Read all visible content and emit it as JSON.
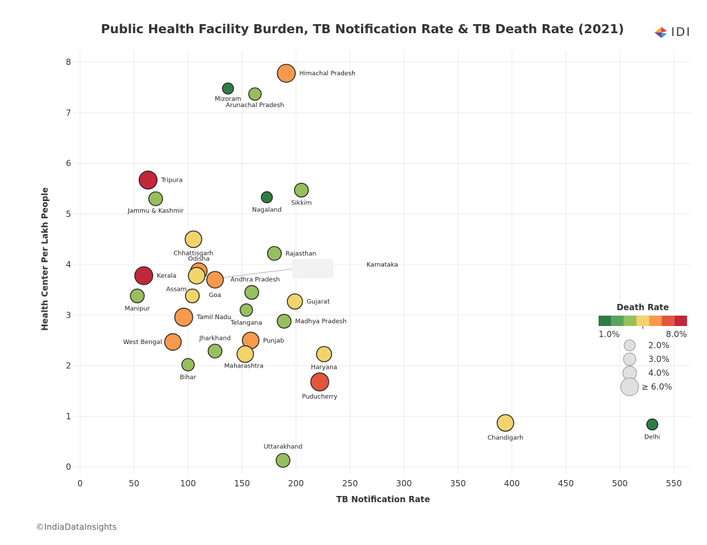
{
  "header": {
    "title": "Public Health Facility Burden, TB Notification Rate & TB Death Rate (2021)",
    "logo_text": "IDI"
  },
  "footer": {
    "credit": "©IndiaDataInsights"
  },
  "colors": {
    "scale": [
      "#2e7d45",
      "#5aa35a",
      "#97bf5e",
      "#f3d46b",
      "#f79a4d",
      "#e5553e",
      "#c2273a"
    ],
    "size_legend_fill": "#e0e0e0",
    "size_legend_stroke": "#9a9a9a"
  },
  "chart_data": {
    "type": "scatter",
    "title": "Public Health Facility Burden, TB Notification Rate & TB Death Rate (2021)",
    "xlabel": "TB Notification Rate",
    "ylabel": "Health Center Per Lakh People",
    "xlim": [
      0,
      565
    ],
    "ylim": [
      -0.1,
      8.3
    ],
    "x_ticks": [
      "0",
      "50",
      "100",
      "150",
      "200",
      "250",
      "300",
      "350",
      "400",
      "450",
      "500",
      "550"
    ],
    "y_ticks": [
      "0",
      "1",
      "2",
      "3",
      "4",
      "5",
      "6",
      "7",
      "8"
    ],
    "grid": true,
    "color_encoding": "Death Rate",
    "size_encoding": "Death Rate",
    "points": [
      {
        "label": "Himachal Pradesh",
        "x": 191,
        "y": 7.78,
        "color": "#f79a4d",
        "size": 13
      },
      {
        "label": "Mizoram",
        "x": 137,
        "y": 7.48,
        "color": "#2e7d45",
        "size": 8
      },
      {
        "label": "Arunachal Pradesh",
        "x": 162,
        "y": 7.37,
        "color": "#97bf5e",
        "size": 9
      },
      {
        "label": "Tripura",
        "x": 63,
        "y": 5.67,
        "color": "#c2273a",
        "size": 13
      },
      {
        "label": "Jammu & Kashmir",
        "x": 70,
        "y": 5.3,
        "color": "#97bf5e",
        "size": 10
      },
      {
        "label": "Sikkim",
        "x": 205,
        "y": 5.47,
        "color": "#97bf5e",
        "size": 10
      },
      {
        "label": "Nagaland",
        "x": 173,
        "y": 5.33,
        "color": "#2e7d45",
        "size": 8
      },
      {
        "label": "Chhattisgarh",
        "x": 105,
        "y": 4.5,
        "color": "#f3d46b",
        "size": 12
      },
      {
        "label": "Rajasthan",
        "x": 180,
        "y": 4.22,
        "color": "#97bf5e",
        "size": 10
      },
      {
        "label": "Odisha",
        "x": 110,
        "y": 3.87,
        "color": "#f79a4d",
        "size": 12
      },
      {
        "label": "Karnataka",
        "x": 108,
        "y": 3.78,
        "color": "#f3d46b",
        "size": 12
      },
      {
        "label": "Kerala",
        "x": 59,
        "y": 3.78,
        "color": "#c2273a",
        "size": 13
      },
      {
        "label": "Goa",
        "x": 125,
        "y": 3.7,
        "color": "#f79a4d",
        "size": 12
      },
      {
        "label": "Andhra Pradesh",
        "x": 159,
        "y": 3.45,
        "color": "#97bf5e",
        "size": 10
      },
      {
        "label": "Assam",
        "x": 104,
        "y": 3.38,
        "color": "#f3d46b",
        "size": 10
      },
      {
        "label": "Manipur",
        "x": 53,
        "y": 3.38,
        "color": "#97bf5e",
        "size": 10
      },
      {
        "label": "Gujarat",
        "x": 199,
        "y": 3.27,
        "color": "#f3d46b",
        "size": 11
      },
      {
        "label": "Telangana",
        "x": 154,
        "y": 3.1,
        "color": "#97bf5e",
        "size": 9
      },
      {
        "label": "Tamil Nadu",
        "x": 96,
        "y": 2.96,
        "color": "#f79a4d",
        "size": 13
      },
      {
        "label": "Madhya Pradesh",
        "x": 189,
        "y": 2.88,
        "color": "#97bf5e",
        "size": 10
      },
      {
        "label": "West Bengal",
        "x": 86,
        "y": 2.47,
        "color": "#f79a4d",
        "size": 12
      },
      {
        "label": "Punjab",
        "x": 158,
        "y": 2.5,
        "color": "#f79a4d",
        "size": 12
      },
      {
        "label": "Jharkhand",
        "x": 125,
        "y": 2.29,
        "color": "#97bf5e",
        "size": 10
      },
      {
        "label": "Maharashtra",
        "x": 153,
        "y": 2.23,
        "color": "#f3d46b",
        "size": 12
      },
      {
        "label": "Haryana",
        "x": 226,
        "y": 2.23,
        "color": "#f3d46b",
        "size": 11
      },
      {
        "label": "Bihar",
        "x": 100,
        "y": 2.02,
        "color": "#97bf5e",
        "size": 9
      },
      {
        "label": "Puducherry",
        "x": 222,
        "y": 1.68,
        "color": "#e5553e",
        "size": 13
      },
      {
        "label": "Chandigarh",
        "x": 394,
        "y": 0.87,
        "color": "#f3d46b",
        "size": 12
      },
      {
        "label": "Delhi",
        "x": 530,
        "y": 0.84,
        "color": "#2e7d45",
        "size": 8
      },
      {
        "label": "Uttarakhand",
        "x": 188,
        "y": 0.13,
        "color": "#97bf5e",
        "size": 10
      }
    ],
    "legend": {
      "title": "Death Rate",
      "color_min": "1.0%",
      "color_max": "8.0%",
      "sizes": [
        {
          "label": "2.0%",
          "size": 8
        },
        {
          "label": "3.0%",
          "size": 9
        },
        {
          "label": "4.0%",
          "size": 10
        },
        {
          "label": "≥ 6.0%",
          "size": 13
        }
      ]
    }
  }
}
